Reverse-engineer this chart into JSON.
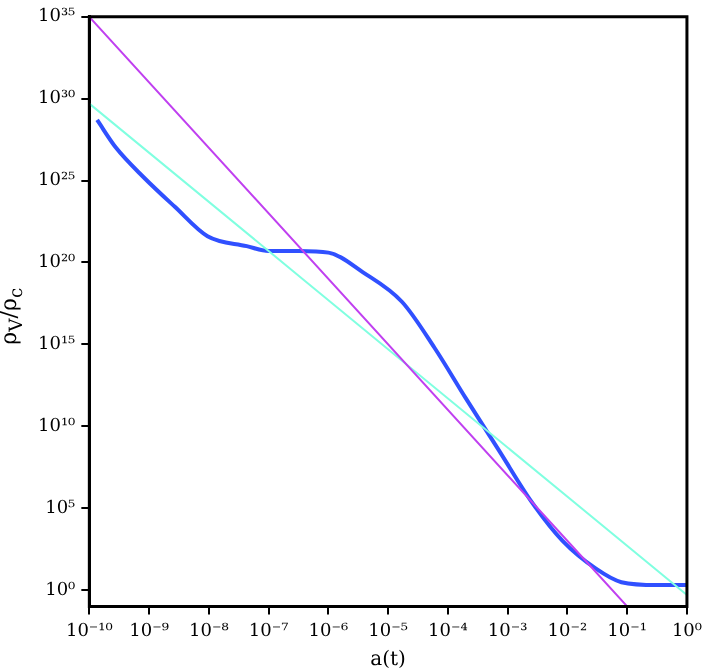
{
  "chart_data": {
    "type": "line",
    "xlabel": "a(t)",
    "ylabel": "ρ$_{V}$/ρ$_{c}$",
    "log": "xy",
    "grid": false,
    "legend": false,
    "marker": "none",
    "line_style": "solid",
    "xlim": [
      1e-10,
      1
    ],
    "ylim": [
      0.1,
      1e+35
    ],
    "xticks": [
      {
        "value": 1e-10,
        "label": "10⁻¹⁰"
      },
      {
        "value": 1e-09,
        "label": "10⁻⁹"
      },
      {
        "value": 1e-08,
        "label": "10⁻⁸"
      },
      {
        "value": 1e-07,
        "label": "10⁻⁷"
      },
      {
        "value": 1e-06,
        "label": "10⁻⁶"
      },
      {
        "value": 1e-05,
        "label": "10⁻⁵"
      },
      {
        "value": 0.0001,
        "label": "10⁻⁴"
      },
      {
        "value": 0.001,
        "label": "10⁻³"
      },
      {
        "value": 0.01,
        "label": "10⁻²"
      },
      {
        "value": 0.1,
        "label": "10⁻¹"
      },
      {
        "value": 1,
        "label": "10⁰"
      }
    ],
    "yticks": [
      {
        "value": 1,
        "label": "10⁰"
      },
      {
        "value": 100000.0,
        "label": "10⁵"
      },
      {
        "value": 10000000000.0,
        "label": "10¹⁰"
      },
      {
        "value": 1000000000000000.0,
        "label": "10¹⁵"
      },
      {
        "value": 1e+20,
        "label": "10²⁰"
      },
      {
        "value": 1e+25,
        "label": "10²⁵"
      },
      {
        "value": 1e+30,
        "label": "10³⁰"
      },
      {
        "value": 1e+35,
        "label": "10³⁵"
      }
    ],
    "series": [
      {
        "color": "#c040f0",
        "x": [
          1e-10,
          0.1
        ],
        "values": [
          1e+35,
          0.1
        ]
      },
      {
        "color": "#80ffe0",
        "x": [
          1e-10,
          1
        ],
        "values": [
          5e+29,
          0.5
        ]
      },
      {
        "color": "#3050ff",
        "x": [
          1.35e-10,
          2.8e-10,
          8.1e-10,
          2.7e-09,
          9.5e-09,
          4.3e-08,
          1e-07,
          3.2e-07,
          1e-06,
          3.8e-06,
          1.7e-05,
          6e-05,
          0.0002,
          0.00071,
          0.0025,
          0.0083,
          0.03,
          0.08,
          0.32,
          1
        ],
        "values": [
          5e+28,
          1e+27,
          1.6e+25,
          2.5e+23,
          4e+21,
          1e+21,
          5e+20,
          5e+20,
          4e+20,
          2.5e+19,
          4e+17,
          600000000000000.0,
          500000000000.0,
          350000000.0,
          250000.0,
          1000.0,
          20,
          3,
          2,
          2
        ]
      }
    ]
  }
}
